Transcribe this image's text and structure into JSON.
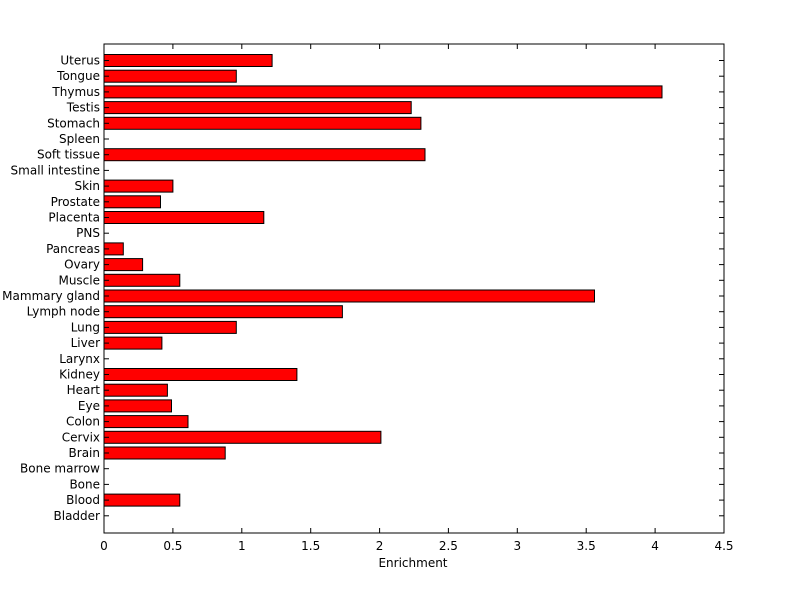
{
  "chart_data": {
    "type": "bar",
    "orientation": "horizontal",
    "xlabel": "Enrichment",
    "xlim": [
      0,
      4.5
    ],
    "xticks": [
      "0",
      "0.5",
      "1",
      "1.5",
      "2",
      "2.5",
      "3",
      "3.5",
      "4",
      "4.5"
    ],
    "grid": false,
    "bar_color": "#ff0000",
    "bar_edge_color": "#000000",
    "categories": [
      "Uterus",
      "Tongue",
      "Thymus",
      "Testis",
      "Stomach",
      "Spleen",
      "Soft tissue",
      "Small intestine",
      "Skin",
      "Prostate",
      "Placenta",
      "PNS",
      "Pancreas",
      "Ovary",
      "Muscle",
      "Mammary gland",
      "Lymph node",
      "Lung",
      "Liver",
      "Larynx",
      "Kidney",
      "Heart",
      "Eye",
      "Colon",
      "Cervix",
      "Brain",
      "Bone marrow",
      "Bone",
      "Blood",
      "Bladder"
    ],
    "values": [
      1.22,
      0.96,
      4.05,
      2.23,
      2.3,
      0,
      2.33,
      0,
      0.5,
      0.41,
      1.16,
      0,
      0.14,
      0.28,
      0.55,
      3.56,
      1.73,
      0.96,
      0.42,
      0,
      1.4,
      0.46,
      0.49,
      0.61,
      2.01,
      0.88,
      0,
      0,
      0.55,
      0
    ]
  }
}
